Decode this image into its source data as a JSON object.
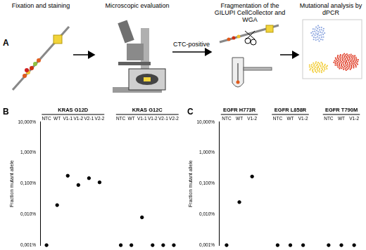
{
  "diagram": {
    "label": "A",
    "steps": [
      "Fixation and staining",
      "Microscopic evaluation",
      "Fragmentation of the GILUPI CellCollector and WGA",
      "Mutational analysis by dPCR"
    ],
    "arrow_label": "CTC-positive"
  },
  "chart_data": [
    {
      "label": "B",
      "type": "scatter",
      "y_label": "Fraction mutant allele",
      "log": "y",
      "ylim": [
        0.001,
        10
      ],
      "yticks": [
        {
          "value": 0.001,
          "label": "0,001%"
        },
        {
          "value": 0.01,
          "label": "0,010%"
        },
        {
          "value": 0.1,
          "label": "0,100%"
        },
        {
          "value": 1,
          "label": "1,000%"
        },
        {
          "value": 10,
          "label": "10,000%"
        }
      ],
      "grid": false,
      "color": "#000000",
      "marker": "circle",
      "groups": [
        {
          "name": "KRAS G12D",
          "categories": [
            "NTC",
            "WT",
            "V1-1",
            "V1-2",
            "V2-1",
            "V2-2"
          ],
          "values": [
            0.001,
            0.02,
            0.18,
            0.09,
            0.15,
            0.11
          ]
        },
        {
          "name": "KRAS G12C",
          "categories": [
            "NTC",
            "WT",
            "V1-1",
            "V1-2",
            "V2-1",
            "V2-2"
          ],
          "values": [
            0.001,
            0.001,
            0.008,
            0.001,
            0.001,
            0.001
          ]
        }
      ]
    },
    {
      "label": "C",
      "type": "scatter",
      "y_label": "Fraction mutant allele",
      "log": "y",
      "ylim": [
        0.001,
        10
      ],
      "yticks": [
        {
          "value": 0.001,
          "label": "0,001%"
        },
        {
          "value": 0.01,
          "label": "0,010%"
        },
        {
          "value": 0.1,
          "label": "0,100%"
        },
        {
          "value": 1,
          "label": "1,000%"
        },
        {
          "value": 10,
          "label": "10,000%"
        }
      ],
      "grid": false,
      "color": "#000000",
      "marker": "circle",
      "groups": [
        {
          "name": "EGFR H773R",
          "categories": [
            "NTC",
            "WT",
            "V1-2"
          ],
          "values": [
            0.001,
            0.025,
            0.17
          ]
        },
        {
          "name": "EGFR L858R",
          "categories": [
            "NTC",
            "WT",
            "V1-2"
          ],
          "values": [
            0.001,
            0.001,
            0.001
          ]
        },
        {
          "name": "EGFR T790M",
          "categories": [
            "NTC",
            "WT",
            "V1-2"
          ],
          "values": [
            0.001,
            0.001,
            0.001
          ]
        }
      ]
    }
  ]
}
